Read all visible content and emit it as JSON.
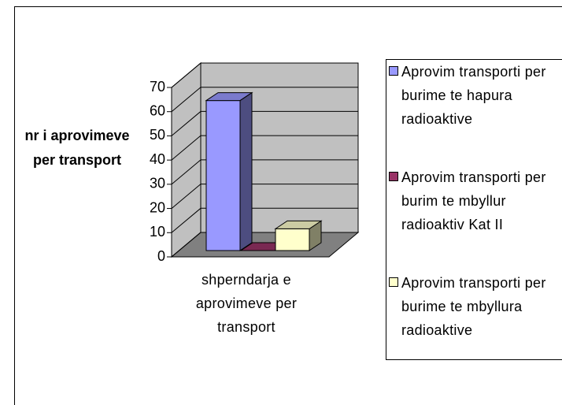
{
  "chart_data": {
    "type": "bar3d",
    "y_label": "nr i aprovimeve per transport",
    "categories": [
      "shperndarja e aprovimeve per transport"
    ],
    "series": [
      {
        "name": "Aprovim transporti per burime te hapura radioaktive",
        "color": "#9999ff",
        "values": [
          62
        ]
      },
      {
        "name": "Aprovim transporti per burim te mbyllur radioaktiv Kat II",
        "color": "#993366",
        "values": [
          0
        ]
      },
      {
        "name": "Aprovim transporti per burime te mbyllura radioaktive",
        "color": "#ffffcc",
        "values": [
          9
        ]
      }
    ],
    "ylim": [
      0,
      70
    ],
    "yticks": [
      0,
      10,
      20,
      30,
      40,
      50,
      60,
      70
    ],
    "grid": true,
    "legend": "right"
  }
}
